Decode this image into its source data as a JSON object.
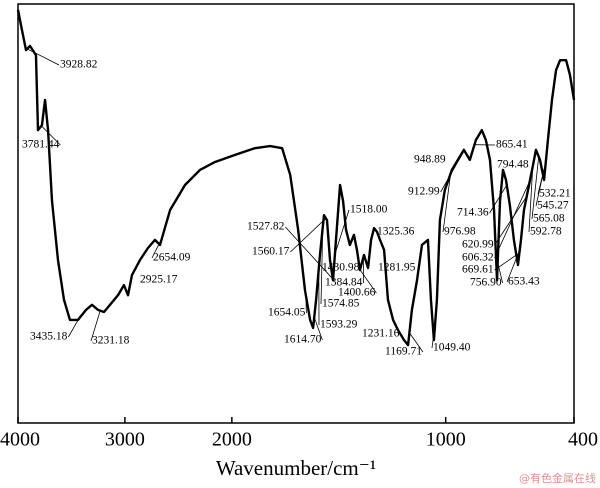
{
  "chart_data": {
    "type": "line",
    "xlabel": "Wavenumber/cm⁻¹",
    "watermark": "@有色金属在线",
    "xlim": [
      4000,
      400
    ],
    "xbreak": 2000,
    "xticks": [
      4000,
      3000,
      2000,
      1000,
      400
    ],
    "ylim": [
      0,
      100
    ],
    "color": "#000000",
    "x": [
      4000,
      3963,
      3925,
      3888,
      3832,
      3813,
      3776,
      3747,
      3719,
      3682,
      3626,
      3570,
      3514,
      3439,
      3364,
      3308,
      3252,
      3196,
      3140,
      3065,
      3009,
      2971,
      2934,
      2859,
      2784,
      2719,
      2672,
      2578,
      2438,
      2298,
      2157,
      1985,
      1892,
      1821,
      1765,
      1727,
      1690,
      1658,
      1634,
      1620,
      1606,
      1588,
      1569,
      1555,
      1541,
      1527,
      1513,
      1494,
      1480,
      1466,
      1448,
      1429,
      1415,
      1401,
      1382,
      1363,
      1349,
      1335,
      1321,
      1307,
      1288,
      1270,
      1246,
      1223,
      1195,
      1176,
      1158,
      1134,
      1111,
      1083,
      1069,
      1055,
      1041,
      1027,
      1004,
      971,
      943,
      915,
      887,
      859,
      831,
      812,
      793,
      774,
      760,
      746,
      732,
      718,
      700,
      681,
      662,
      648,
      634,
      615,
      596,
      578,
      559,
      540,
      522,
      503,
      484,
      465,
      437,
      419,
      400
    ],
    "values": [
      98.6,
      93.8,
      89.0,
      90.0,
      87.8,
      69.9,
      71.1,
      77.1,
      69.9,
      53.0,
      38.9,
      29.4,
      24.6,
      24.6,
      27.0,
      28.2,
      27.0,
      26.5,
      28.2,
      30.5,
      32.9,
      30.5,
      35.3,
      38.9,
      41.8,
      43.7,
      42.5,
      50.8,
      56.8,
      60.4,
      62.3,
      64.0,
      65.6,
      66.1,
      65.6,
      59.2,
      46.1,
      31.7,
      24.6,
      22.7,
      29.4,
      40.1,
      49.6,
      48.4,
      38.9,
      34.1,
      43.7,
      56.8,
      53.0,
      46.1,
      42.5,
      44.9,
      41.3,
      36.5,
      40.1,
      37.0,
      43.7,
      46.5,
      45.6,
      43.7,
      41.3,
      29.4,
      24.6,
      22.2,
      19.8,
      18.6,
      27.0,
      34.1,
      42.5,
      43.7,
      29.4,
      19.8,
      29.4,
      48.4,
      55.6,
      60.4,
      62.8,
      65.2,
      62.8,
      67.5,
      69.9,
      67.5,
      62.8,
      50.8,
      34.1,
      53.0,
      60.4,
      58.0,
      52.0,
      43.7,
      37.7,
      43.7,
      50.8,
      55.6,
      60.4,
      65.2,
      62.8,
      58.0,
      67.5,
      77.1,
      84.2,
      86.6,
      86.6,
      83.1,
      77.1
    ],
    "annotations": [
      {
        "x": 3928.82,
        "label": "3928.82"
      },
      {
        "x": 3781.44,
        "label": "3781.44"
      },
      {
        "x": 3435.18,
        "label": "3435.18"
      },
      {
        "x": 3231.18,
        "label": "3231.18"
      },
      {
        "x": 2925.17,
        "label": "2925.17"
      },
      {
        "x": 2654.09,
        "label": "2654.09"
      },
      {
        "x": 1654.05,
        "label": "1654.05"
      },
      {
        "x": 1614.7,
        "label": "1614.70"
      },
      {
        "x": 1593.29,
        "label": "1593.29"
      },
      {
        "x": 1574.85,
        "label": "1574.85"
      },
      {
        "x": 1560.17,
        "label": "1560.17"
      },
      {
        "x": 1527.82,
        "label": "1527.82"
      },
      {
        "x": 1518.0,
        "label": "1518.00"
      },
      {
        "x": 1430.98,
        "label": "1430.98"
      },
      {
        "x": 1384.84,
        "label": "1384.84"
      },
      {
        "x": 1400.66,
        "label": "1400.66"
      },
      {
        "x": 1325.36,
        "label": "1325.36"
      },
      {
        "x": 1281.95,
        "label": "1281.95"
      },
      {
        "x": 1231.16,
        "label": "1231.16"
      },
      {
        "x": 1169.71,
        "label": "1169.71"
      },
      {
        "x": 1049.4,
        "label": "1049.40"
      },
      {
        "x": 976.98,
        "label": "976.98"
      },
      {
        "x": 948.89,
        "label": "948.89"
      },
      {
        "x": 912.99,
        "label": "912.99"
      },
      {
        "x": 865.41,
        "label": "865.41"
      },
      {
        "x": 794.48,
        "label": "794.48"
      },
      {
        "x": 714.36,
        "label": "714.36"
      },
      {
        "x": 620.99,
        "label": "620.99"
      },
      {
        "x": 606.32,
        "label": "606.32"
      },
      {
        "x": 669.61,
        "label": "669.61"
      },
      {
        "x": 756.9,
        "label": "756.90"
      },
      {
        "x": 653.43,
        "label": "653.43"
      },
      {
        "x": 592.78,
        "label": "592.78"
      },
      {
        "x": 565.08,
        "label": "565.08"
      },
      {
        "x": 545.27,
        "label": "545.27"
      },
      {
        "x": 532.21,
        "label": "532.21"
      }
    ]
  }
}
